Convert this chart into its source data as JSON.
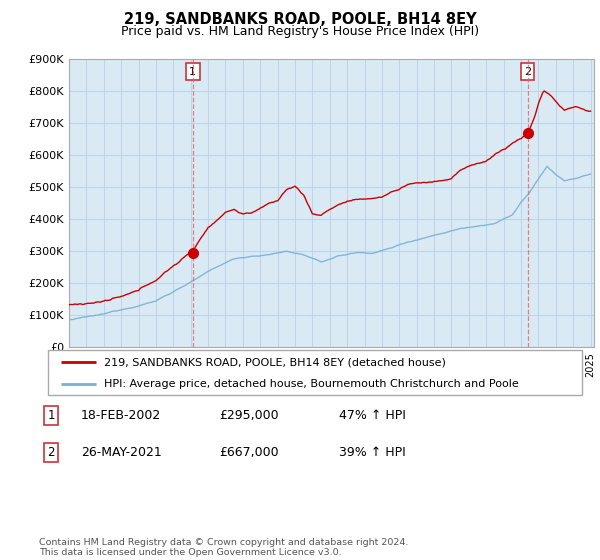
{
  "title": "219, SANDBANKS ROAD, POOLE, BH14 8EY",
  "subtitle": "Price paid vs. HM Land Registry's House Price Index (HPI)",
  "ylim": [
    0,
    900000
  ],
  "yticks": [
    0,
    100000,
    200000,
    300000,
    400000,
    500000,
    600000,
    700000,
    800000,
    900000
  ],
  "ytick_labels": [
    "£0",
    "£100K",
    "£200K",
    "£300K",
    "£400K",
    "£500K",
    "£600K",
    "£700K",
    "£800K",
    "£900K"
  ],
  "xlim_start": 1995.0,
  "xlim_end": 2025.2,
  "house_color": "#cc0000",
  "hpi_color": "#7ab0d4",
  "plot_bg_color": "#daeaf5",
  "grid_color": "#c0d4e8",
  "vline_color": "#dd6666",
  "legend_house_label": "219, SANDBANKS ROAD, POOLE, BH14 8EY (detached house)",
  "legend_hpi_label": "HPI: Average price, detached house, Bournemouth Christchurch and Poole",
  "transaction1_date": "18-FEB-2002",
  "transaction1_price": "£295,000",
  "transaction1_hpi": "47% ↑ HPI",
  "transaction1_year": 2002.12,
  "transaction1_value": 295000,
  "transaction2_date": "26-MAY-2021",
  "transaction2_price": "£667,000",
  "transaction2_hpi": "39% ↑ HPI",
  "transaction2_year": 2021.38,
  "transaction2_value": 667000,
  "footer": "Contains HM Land Registry data © Crown copyright and database right 2024.\nThis data is licensed under the Open Government Licence v3.0.",
  "background_color": "#ffffff"
}
